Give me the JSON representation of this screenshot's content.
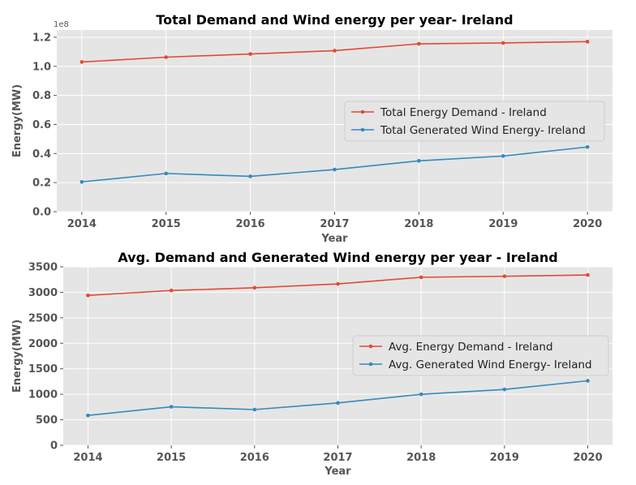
{
  "chart_data": [
    {
      "type": "line",
      "title": "Total Demand and Wind energy per year- Ireland",
      "xlabel": "Year",
      "ylabel": "Energy(MW)",
      "y_offset_label": "1e8",
      "categories": [
        "2014",
        "2015",
        "2016",
        "2017",
        "2018",
        "2019",
        "2020"
      ],
      "ylim": [
        0,
        1.25
      ],
      "yticks": [
        "0.0",
        "0.2",
        "0.4",
        "0.6",
        "0.8",
        "1.0",
        "1.2"
      ],
      "ytick_values": [
        0.0,
        0.2,
        0.4,
        0.6,
        0.8,
        1.0,
        1.2
      ],
      "grid": true,
      "legend": "center-right",
      "series": [
        {
          "name": "Total Energy Demand - Ireland",
          "color": "#E24A33",
          "values": [
            1.03,
            1.063,
            1.085,
            1.108,
            1.155,
            1.161,
            1.17
          ]
        },
        {
          "name": "Total Generated Wind Energy- Ireland",
          "color": "#348ABD",
          "values": [
            0.205,
            0.263,
            0.243,
            0.29,
            0.35,
            0.383,
            0.445
          ]
        }
      ]
    },
    {
      "type": "line",
      "title": "Avg. Demand and Generated Wind energy per year - Ireland",
      "xlabel": "Year",
      "ylabel": "Energy(MW)",
      "categories": [
        "2014",
        "2015",
        "2016",
        "2017",
        "2018",
        "2019",
        "2020"
      ],
      "ylim": [
        0,
        3500
      ],
      "yticks": [
        "0",
        "500",
        "1000",
        "1500",
        "2000",
        "2500",
        "3000",
        "3500"
      ],
      "ytick_values": [
        0,
        500,
        1000,
        1500,
        2000,
        2500,
        3000,
        3500
      ],
      "grid": true,
      "legend": "center-right",
      "series": [
        {
          "name": "Avg. Energy Demand - Ireland",
          "color": "#E24A33",
          "values": [
            2940,
            3035,
            3090,
            3165,
            3295,
            3315,
            3340
          ]
        },
        {
          "name": "Avg. Generated Wind Energy- Ireland",
          "color": "#348ABD",
          "values": [
            585,
            755,
            700,
            830,
            1000,
            1095,
            1265
          ]
        }
      ]
    }
  ]
}
